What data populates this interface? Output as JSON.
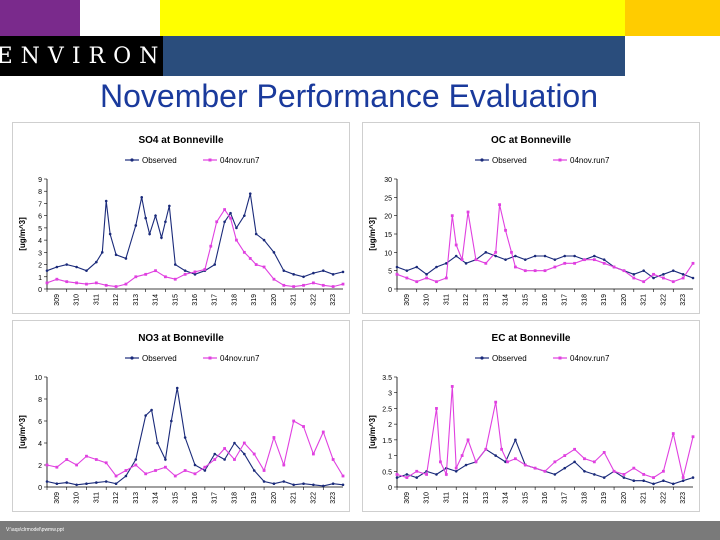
{
  "header": {
    "logo_text": "ENVIRON",
    "title": "November Performance Evaluation"
  },
  "footer": {
    "path_text": "V:\\aqs\\clrmodel\\pwmw.ppt"
  },
  "colors": {
    "observed": "#1a2a7a",
    "model": "#e040e0"
  },
  "chart_data": [
    {
      "type": "line",
      "title": "SO4 at Bonneville",
      "ylabel": "[ug/m^3]",
      "xlabel": "",
      "ylim": [
        0,
        9
      ],
      "yticks": [
        "0",
        "1",
        "2",
        "3",
        "4",
        "5",
        "6",
        "7",
        "8",
        "9"
      ],
      "xticks": [
        "309",
        "310",
        "311",
        "312",
        "313",
        "314",
        "315",
        "316",
        "317",
        "318",
        "319",
        "320",
        "321",
        "322",
        "323"
      ],
      "xlim": [
        309,
        324
      ],
      "legend": [
        "Observed",
        "04nov.run7"
      ],
      "series": [
        {
          "name": "Observed",
          "x": [
            309,
            309.5,
            310,
            310.5,
            311,
            311.5,
            311.8,
            312,
            312.2,
            312.5,
            313,
            313.5,
            313.8,
            314,
            314.2,
            314.5,
            314.8,
            315,
            315.2,
            315.5,
            316,
            316.5,
            317,
            317.5,
            318,
            318.3,
            318.6,
            319,
            319.3,
            319.6,
            320,
            320.5,
            321,
            321.5,
            322,
            322.5,
            323,
            323.5,
            324
          ],
          "values": [
            1.5,
            1.8,
            2.0,
            1.8,
            1.5,
            2.2,
            3.0,
            7.2,
            4.5,
            2.8,
            2.5,
            5.2,
            7.5,
            5.8,
            4.5,
            6.0,
            4.2,
            5.5,
            6.8,
            2.0,
            1.5,
            1.2,
            1.5,
            2.0,
            5.5,
            6.2,
            5.0,
            6.0,
            7.8,
            4.5,
            4.0,
            3.0,
            1.5,
            1.2,
            1.0,
            1.3,
            1.5,
            1.2,
            1.4
          ]
        },
        {
          "name": "04nov.run7",
          "x": [
            309,
            309.5,
            310,
            310.5,
            311,
            311.5,
            312,
            312.5,
            313,
            313.5,
            314,
            314.5,
            315,
            315.5,
            316,
            316.5,
            317,
            317.3,
            317.6,
            318,
            318.3,
            318.6,
            319,
            319.3,
            319.6,
            320,
            320.5,
            321,
            321.5,
            322,
            322.5,
            323,
            323.5,
            324
          ],
          "values": [
            0.5,
            0.8,
            0.6,
            0.5,
            0.4,
            0.5,
            0.3,
            0.2,
            0.4,
            1.0,
            1.2,
            1.5,
            1.0,
            0.8,
            1.2,
            1.4,
            1.6,
            3.5,
            5.5,
            6.5,
            5.8,
            4.0,
            3.0,
            2.5,
            2.0,
            1.8,
            0.8,
            0.3,
            0.2,
            0.3,
            0.5,
            0.3,
            0.2,
            0.4
          ]
        }
      ]
    },
    {
      "type": "line",
      "title": "OC at Bonneville",
      "ylabel": "[ug/m^3]",
      "xlabel": "",
      "ylim": [
        0,
        30
      ],
      "yticks": [
        "0",
        "5",
        "10",
        "15",
        "20",
        "25",
        "30"
      ],
      "xticks": [
        "309",
        "310",
        "311",
        "312",
        "313",
        "314",
        "315",
        "316",
        "317",
        "318",
        "319",
        "320",
        "321",
        "322",
        "323"
      ],
      "xlim": [
        309,
        324
      ],
      "legend": [
        "Observed",
        "04nov.run7"
      ],
      "series": [
        {
          "name": "Observed",
          "x": [
            309,
            309.5,
            310,
            310.5,
            311,
            311.5,
            312,
            312.5,
            313,
            313.5,
            314,
            314.5,
            315,
            315.5,
            316,
            316.5,
            317,
            317.5,
            318,
            318.5,
            319,
            319.5,
            320,
            320.5,
            321,
            321.5,
            322,
            322.5,
            323,
            323.5,
            324
          ],
          "values": [
            6,
            5,
            6,
            4,
            6,
            7,
            9,
            7,
            8,
            10,
            9,
            8,
            9,
            8,
            9,
            9,
            8,
            9,
            9,
            8,
            9,
            8,
            6,
            5,
            4,
            5,
            3,
            4,
            5,
            4,
            3
          ]
        },
        {
          "name": "04nov.run7",
          "x": [
            309,
            309.5,
            310,
            310.5,
            311,
            311.5,
            311.8,
            312,
            312.3,
            312.6,
            313,
            313.5,
            314,
            314.2,
            314.5,
            314.8,
            315,
            315.5,
            316,
            316.5,
            317,
            317.5,
            318,
            318.5,
            319,
            319.5,
            320,
            320.5,
            321,
            321.5,
            322,
            322.5,
            323,
            323.5,
            324
          ],
          "values": [
            4,
            3,
            2,
            3,
            2,
            3,
            20,
            12,
            8,
            21,
            8,
            7,
            10,
            23,
            16,
            10,
            6,
            5,
            5,
            5,
            6,
            7,
            7,
            8,
            8,
            7,
            6,
            5,
            3,
            2,
            4,
            3,
            2,
            3,
            7
          ]
        }
      ]
    },
    {
      "type": "line",
      "title": "NO3 at Bonneville",
      "ylabel": "[ug/m^3]",
      "xlabel": "",
      "ylim": [
        0,
        10
      ],
      "yticks": [
        "0",
        "2",
        "4",
        "6",
        "8",
        "10"
      ],
      "xticks": [
        "309",
        "310",
        "311",
        "312",
        "313",
        "314",
        "315",
        "316",
        "317",
        "318",
        "319",
        "320",
        "321",
        "322",
        "323"
      ],
      "xlim": [
        309,
        324
      ],
      "legend": [
        "Observed",
        "04nov.run7"
      ],
      "series": [
        {
          "name": "Observed",
          "x": [
            309,
            309.5,
            310,
            310.5,
            311,
            311.5,
            312,
            312.5,
            313,
            313.5,
            314,
            314.3,
            314.6,
            315,
            315.3,
            315.6,
            316,
            316.5,
            317,
            317.5,
            318,
            318.5,
            319,
            319.5,
            320,
            320.5,
            321,
            321.5,
            322,
            322.5,
            323,
            323.5,
            324
          ],
          "values": [
            0.5,
            0.3,
            0.4,
            0.2,
            0.3,
            0.4,
            0.5,
            0.3,
            1.0,
            2.5,
            6.5,
            7.0,
            4.0,
            2.5,
            6.0,
            9.0,
            4.5,
            2.0,
            1.5,
            3.0,
            2.5,
            4.0,
            3.0,
            1.5,
            0.5,
            0.3,
            0.5,
            0.2,
            0.3,
            0.2,
            0.1,
            0.3,
            0.2
          ]
        },
        {
          "name": "04nov.run7",
          "x": [
            309,
            309.5,
            310,
            310.5,
            311,
            311.5,
            312,
            312.5,
            313,
            313.5,
            314,
            314.5,
            315,
            315.5,
            316,
            316.5,
            317,
            317.5,
            318,
            318.5,
            319,
            319.5,
            320,
            320.5,
            321,
            321.5,
            322,
            322.5,
            323,
            323.5,
            324
          ],
          "values": [
            2.0,
            1.8,
            2.5,
            2.0,
            2.8,
            2.5,
            2.2,
            1.0,
            1.5,
            2.0,
            1.2,
            1.5,
            1.8,
            1.0,
            1.5,
            1.2,
            1.8,
            2.5,
            3.5,
            2.5,
            4.0,
            3.0,
            1.5,
            4.5,
            2.0,
            6.0,
            5.5,
            3.0,
            5.0,
            2.5,
            1.0
          ]
        }
      ]
    },
    {
      "type": "line",
      "title": "EC at Bonneville",
      "ylabel": "[ug/m^3]",
      "xlabel": "",
      "ylim": [
        0,
        3.5
      ],
      "yticks": [
        "0",
        "0.5",
        "1",
        "1.5",
        "2",
        "2.5",
        "3",
        "3.5"
      ],
      "xticks": [
        "309",
        "310",
        "311",
        "312",
        "313",
        "314",
        "315",
        "316",
        "317",
        "318",
        "319",
        "320",
        "321",
        "322",
        "323"
      ],
      "xlim": [
        309,
        324
      ],
      "legend": [
        "Observed",
        "04nov.run7"
      ],
      "series": [
        {
          "name": "Observed",
          "x": [
            309,
            309.5,
            310,
            310.5,
            311,
            311.5,
            312,
            312.5,
            313,
            313.5,
            314,
            314.5,
            315,
            315.5,
            316,
            316.5,
            317,
            317.5,
            318,
            318.5,
            319,
            319.5,
            320,
            320.5,
            321,
            321.5,
            322,
            322.5,
            323,
            323.5,
            324
          ],
          "values": [
            0.3,
            0.4,
            0.3,
            0.5,
            0.4,
            0.6,
            0.5,
            0.7,
            0.8,
            1.2,
            1.0,
            0.8,
            1.5,
            0.7,
            0.6,
            0.5,
            0.4,
            0.6,
            0.8,
            0.5,
            0.4,
            0.3,
            0.5,
            0.3,
            0.2,
            0.2,
            0.1,
            0.2,
            0.1,
            0.2,
            0.3
          ]
        },
        {
          "name": "04nov.run7",
          "x": [
            309,
            309.5,
            310,
            310.5,
            311,
            311.2,
            311.5,
            311.8,
            312,
            312.3,
            312.6,
            313,
            313.5,
            314,
            314.3,
            314.6,
            315,
            315.5,
            316,
            316.5,
            317,
            317.5,
            318,
            318.5,
            319,
            319.5,
            320,
            320.5,
            321,
            321.5,
            322,
            322.5,
            323,
            323.5,
            324
          ],
          "values": [
            0.4,
            0.3,
            0.5,
            0.4,
            2.5,
            0.8,
            0.4,
            3.2,
            0.6,
            1.0,
            1.5,
            0.8,
            1.2,
            2.7,
            1.2,
            0.8,
            0.9,
            0.7,
            0.6,
            0.5,
            0.8,
            1.0,
            1.2,
            0.9,
            0.8,
            1.1,
            0.5,
            0.4,
            0.6,
            0.4,
            0.3,
            0.5,
            1.7,
            0.3,
            1.6
          ]
        }
      ]
    }
  ]
}
